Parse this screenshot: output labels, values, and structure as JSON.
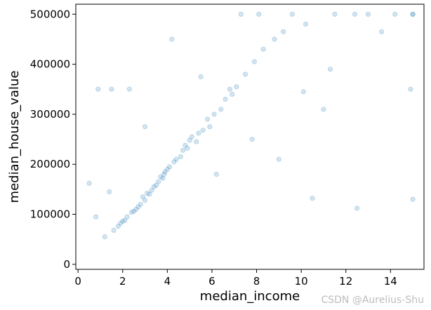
{
  "chart_data": {
    "type": "scatter",
    "title": "",
    "xlabel": "median_income",
    "ylabel": "median_house_value",
    "xlim": [
      -0.1,
      15.5
    ],
    "ylim": [
      -10000,
      520000
    ],
    "xticks": [
      0,
      2,
      4,
      6,
      8,
      10,
      12,
      14
    ],
    "yticks": [
      0,
      100000,
      200000,
      300000,
      400000,
      500000
    ],
    "grid": false,
    "legend": "none",
    "marker_color": "#1f77b4",
    "marker_alpha": 0.1,
    "points": [
      [
        3.2,
        140000
      ],
      [
        4.1,
        195000
      ],
      [
        2.6,
        110000
      ],
      [
        5.3,
        245000
      ],
      [
        3.8,
        172000
      ],
      [
        1.9,
        82000
      ],
      [
        6.4,
        310000
      ],
      [
        2.2,
        95000
      ],
      [
        4.6,
        215000
      ],
      [
        3.0,
        128000
      ],
      [
        7.5,
        380000
      ],
      [
        5.9,
        275000
      ],
      [
        2.8,
        120000
      ],
      [
        4.9,
        232000
      ],
      [
        3.5,
        158000
      ],
      [
        1.6,
        68000
      ],
      [
        8.3,
        430000
      ],
      [
        6.8,
        350000
      ],
      [
        3.9,
        185000
      ],
      [
        2.4,
        104000
      ],
      [
        5.1,
        255000
      ],
      [
        4.3,
        205000
      ],
      [
        3.3,
        148000
      ],
      [
        6.1,
        300000
      ],
      [
        1.2,
        55000
      ],
      [
        9.2,
        465000
      ],
      [
        2.9,
        135000
      ],
      [
        4.7,
        228000
      ],
      [
        3.6,
        165000
      ],
      [
        5.6,
        268000
      ],
      [
        7.1,
        355000
      ],
      [
        2.1,
        88000
      ],
      [
        4.0,
        190000
      ],
      [
        3.1,
        142000
      ],
      [
        6.6,
        330000
      ],
      [
        2.7,
        115000
      ],
      [
        5.4,
        262000
      ],
      [
        3.7,
        175000
      ],
      [
        1.8,
        76000
      ],
      [
        4.4,
        210000
      ],
      [
        8.8,
        450000
      ],
      [
        2.5,
        106000
      ],
      [
        5.8,
        290000
      ],
      [
        3.4,
        155000
      ],
      [
        4.8,
        238000
      ],
      [
        6.9,
        340000
      ],
      [
        2.0,
        86000
      ],
      [
        3.85,
        180000
      ],
      [
        7.9,
        405000
      ],
      [
        5.0,
        248000
      ],
      [
        10.2,
        480000
      ],
      [
        11.5,
        500000
      ],
      [
        13.0,
        500000
      ],
      [
        15.0,
        500000
      ],
      [
        15.0,
        500000
      ],
      [
        12.4,
        500000
      ],
      [
        9.6,
        500000
      ],
      [
        14.2,
        500000
      ],
      [
        8.1,
        500000
      ],
      [
        7.3,
        500000
      ],
      [
        0.5,
        162000
      ],
      [
        0.9,
        350000
      ],
      [
        1.5,
        350000
      ],
      [
        2.3,
        350000
      ],
      [
        10.5,
        132000
      ],
      [
        12.5,
        112000
      ],
      [
        15.0,
        130000
      ],
      [
        11.0,
        310000
      ],
      [
        13.6,
        465000
      ],
      [
        4.2,
        450000
      ],
      [
        5.5,
        375000
      ],
      [
        3.0,
        275000
      ],
      [
        1.4,
        145000
      ],
      [
        0.8,
        95000
      ],
      [
        6.2,
        180000
      ],
      [
        7.8,
        250000
      ],
      [
        9.0,
        210000
      ],
      [
        10.1,
        345000
      ],
      [
        11.3,
        390000
      ],
      [
        14.9,
        350000
      ]
    ]
  },
  "watermark": "CSDN @Aurelius-Shu"
}
